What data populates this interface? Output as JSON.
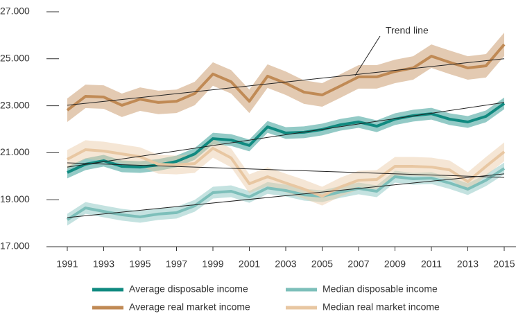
{
  "chart_data": {
    "type": "line",
    "x": [
      1991,
      1992,
      1993,
      1994,
      1995,
      1996,
      1997,
      1998,
      1999,
      2000,
      2001,
      2002,
      2003,
      2004,
      2005,
      2006,
      2007,
      2008,
      2009,
      2010,
      2011,
      2012,
      2013,
      2014,
      2015
    ],
    "xlim": [
      1991,
      2015
    ],
    "xticks": [
      1991,
      1993,
      1995,
      1997,
      1999,
      2001,
      2003,
      2005,
      2007,
      2009,
      2011,
      2013,
      2015
    ],
    "ylim": [
      17000,
      27000
    ],
    "yticks": [
      {
        "value": 17000,
        "label": "17.000"
      },
      {
        "value": 19000,
        "label": "19.000"
      },
      {
        "value": 21000,
        "label": "21.000"
      },
      {
        "value": 23000,
        "label": "23.000"
      },
      {
        "value": 25000,
        "label": "25.000"
      },
      {
        "value": 27000,
        "label": "27.000"
      }
    ],
    "annotation": "Trend line",
    "series": [
      {
        "name": "Average disposable income",
        "color": "#108a80",
        "values": [
          20160,
          20510,
          20660,
          20420,
          20390,
          20480,
          20630,
          20950,
          21600,
          21540,
          21310,
          22100,
          21840,
          21870,
          21990,
          22190,
          22310,
          22130,
          22430,
          22580,
          22660,
          22430,
          22310,
          22550,
          23100
        ],
        "lower": [
          19910,
          20260,
          20410,
          20170,
          20140,
          20230,
          20380,
          20700,
          21350,
          21290,
          21060,
          21850,
          21590,
          21620,
          21740,
          21940,
          22060,
          21880,
          22180,
          22330,
          22410,
          22180,
          22060,
          22300,
          22850
        ],
        "upper": [
          20410,
          20760,
          20910,
          20670,
          20640,
          20730,
          20880,
          21200,
          21850,
          21790,
          21560,
          22350,
          22090,
          22120,
          22240,
          22440,
          22560,
          22380,
          22680,
          22830,
          22910,
          22680,
          22560,
          22800,
          23350
        ],
        "trend": {
          "x": [
            1991,
            2015
          ],
          "y": [
            20390,
            23140
          ]
        }
      },
      {
        "name": "Median disposable income",
        "color": "#7dbfba",
        "values": [
          18150,
          18650,
          18500,
          18360,
          18270,
          18390,
          18450,
          18740,
          19300,
          19360,
          19120,
          19500,
          19390,
          19210,
          19150,
          19330,
          19480,
          19360,
          19980,
          19890,
          19920,
          19710,
          19450,
          19830,
          20330
        ],
        "lower": [
          17900,
          18400,
          18250,
          18110,
          18020,
          18140,
          18200,
          18490,
          19050,
          19110,
          18870,
          19250,
          19140,
          18960,
          18900,
          19080,
          19230,
          19110,
          19730,
          19640,
          19670,
          19460,
          19200,
          19580,
          20080
        ],
        "upper": [
          18400,
          18900,
          18750,
          18610,
          18520,
          18640,
          18700,
          18990,
          19550,
          19610,
          19370,
          19750,
          19640,
          19460,
          19400,
          19580,
          19730,
          19610,
          20230,
          20140,
          20170,
          19960,
          19700,
          20080,
          20580
        ],
        "trend": {
          "x": [
            1991,
            2015
          ],
          "y": [
            18240,
            20100
          ]
        }
      },
      {
        "name": "Average real market income",
        "color": "#c08a55",
        "values": [
          22810,
          23400,
          23370,
          23020,
          23280,
          23140,
          23190,
          23520,
          24350,
          24020,
          23190,
          24260,
          23960,
          23580,
          23460,
          23840,
          24230,
          24230,
          24460,
          24610,
          25110,
          24850,
          24610,
          24700,
          25610
        ],
        "lower": [
          22310,
          22900,
          22870,
          22520,
          22780,
          22640,
          22690,
          23020,
          23850,
          23520,
          22690,
          23760,
          23460,
          23080,
          22960,
          23340,
          23730,
          23730,
          23960,
          24110,
          24610,
          24350,
          24110,
          24200,
          25110
        ],
        "upper": [
          23310,
          23900,
          23870,
          23520,
          23780,
          23640,
          23690,
          24020,
          24850,
          24520,
          23690,
          24760,
          24460,
          24080,
          23960,
          24340,
          24730,
          24730,
          24960,
          25110,
          25610,
          25350,
          25110,
          25200,
          26110
        ],
        "trend": {
          "x": [
            1991,
            2015
          ],
          "y": [
            23020,
            25000
          ]
        }
      },
      {
        "name": "Median real market income",
        "color": "#e8c7a2",
        "values": [
          20720,
          21130,
          21070,
          20950,
          20830,
          20510,
          20480,
          20540,
          21190,
          20780,
          19680,
          19980,
          19710,
          19450,
          19150,
          19540,
          19830,
          19860,
          20420,
          20420,
          20390,
          20270,
          19770,
          20420,
          21040
        ],
        "lower": [
          20320,
          20730,
          20670,
          20550,
          20430,
          20110,
          20080,
          20140,
          20790,
          20380,
          19280,
          19580,
          19310,
          19050,
          18750,
          19140,
          19430,
          19460,
          20020,
          20020,
          19990,
          19870,
          19370,
          20020,
          20640
        ],
        "upper": [
          21120,
          21530,
          21470,
          21350,
          21230,
          20910,
          20880,
          20940,
          21590,
          21180,
          20080,
          20380,
          20110,
          19850,
          19550,
          19940,
          20230,
          20260,
          20820,
          20820,
          20790,
          20670,
          20170,
          20820,
          21440
        ],
        "trend": {
          "x": [
            1991,
            2015
          ],
          "y": [
            20570,
            19950
          ]
        }
      }
    ]
  }
}
